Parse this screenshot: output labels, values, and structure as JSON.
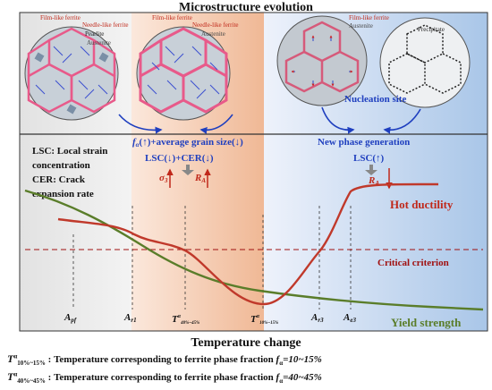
{
  "title": "Microstructure evolution",
  "panels": {
    "p1": {
      "film": "Film-like ferrite",
      "needle": "Needle-like ferrite",
      "pearlite": "Pearlite",
      "austenite": "Austenite"
    },
    "p2": {
      "film": "Film-like ferrite",
      "needle": "Needle-like ferrite",
      "austenite": "Austenite"
    },
    "p3": {
      "film": "Film-like ferrite",
      "austenite": "Austenite"
    },
    "p4": {
      "precipitate": "Precipitate"
    },
    "nucleation": "Nucleation site"
  },
  "annotations": {
    "grain": "fα(↑)+average grain size(↓)",
    "grain_f": "f",
    "grain_a": "α",
    "grain_rest": "(↑)+average grain size(↓)",
    "lsc_cer": "LSC(↓)+CER(↓)",
    "sigma": "σ",
    "sigma_sub": "3",
    "ra": "R",
    "ra_sub": "A",
    "new_phase": "New phase generation",
    "lsc_up": "LSC(↑)",
    "ra2": "R",
    "ra2_sub": "A"
  },
  "legend_text": {
    "lsc1": "LSC: Local strain",
    "lsc2": "concentration",
    "cer1": "CER: Crack",
    "cer2": "expansion rate"
  },
  "curves": {
    "hot_ductility": "Hot ductility",
    "critical": "Critical criterion",
    "yield": "Yield strength"
  },
  "axis_labels": {
    "apf": "A",
    "apf_sub": "pf",
    "ar1": "A",
    "ar1_sub": "r1",
    "t40": "T",
    "t40_sup": "α",
    "t40_sub": "40%~45%",
    "t10": "T",
    "t10_sup": "α",
    "t10_sub": "10%~15%",
    "ar3": "A",
    "ar3_sub": "r3",
    "ae3": "A",
    "ae3_sub": "e3"
  },
  "x_title": "Temperature change",
  "footnotes": [
    {
      "sym": "T",
      "sup": "α",
      "sub": "10%~15%",
      "text": ": Temperature corresponding to ferrite phase fraction ",
      "f": "f",
      "fsub": "α",
      "val": "=10~15%"
    },
    {
      "sym": "T",
      "sup": "α",
      "sub": "40%~45%",
      "text": ": Temperature corresponding to ferrite phase fraction ",
      "f": "f",
      "fsub": "α",
      "val": "=40~45%"
    }
  ],
  "colors": {
    "hot_ductility": "#c0392b",
    "yield": "#5a7d2a",
    "critical": "#a01010",
    "blue_text": "#1f3fbf",
    "red_text": "#c0281a"
  }
}
